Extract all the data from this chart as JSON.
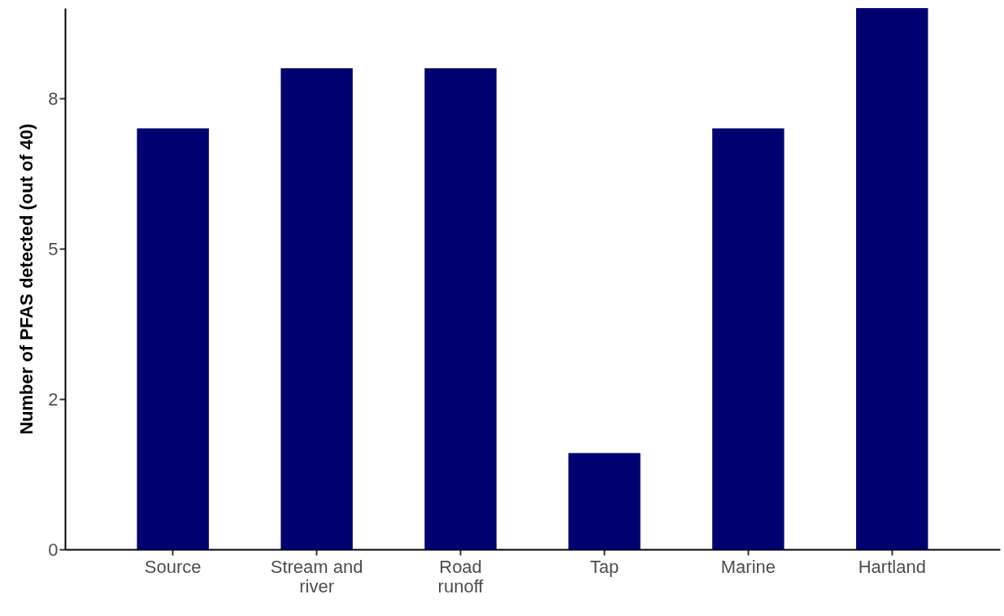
{
  "chart_data": {
    "type": "bar",
    "ylabel": "Number of PFAS detected (out of 40)",
    "categories": [
      "Source",
      "Stream and river",
      "Road runoff",
      "Tap",
      "Marine",
      "Hartland"
    ],
    "values": [
      7,
      8,
      8,
      1.6,
      7,
      9
    ],
    "color": "#000070",
    "ylim": [
      0,
      9
    ],
    "yticks": [
      {
        "value": 0,
        "label": "0"
      },
      {
        "value": 2.5,
        "label": "2"
      },
      {
        "value": 5,
        "label": "5"
      },
      {
        "value": 7.5,
        "label": "8"
      }
    ],
    "grid": false
  }
}
